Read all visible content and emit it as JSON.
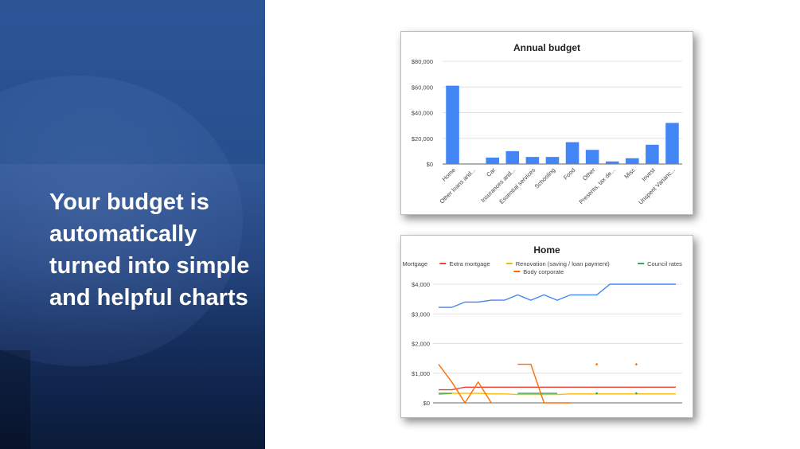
{
  "slide": {
    "tagline": "Your budget is automatically turned into simple and helpful charts"
  },
  "chart_data": [
    {
      "type": "bar",
      "title": "Annual budget",
      "categories": [
        "Home",
        "Other loans and...",
        "Car",
        "Insurances and...",
        "Essential services",
        "Schooling",
        "Food",
        "Other",
        "Presents, tax de...",
        "Misc",
        "Invest",
        "Unspent Varianc..."
      ],
      "values": [
        61000,
        0,
        5000,
        10000,
        5500,
        5500,
        17000,
        11000,
        2000,
        4500,
        15000,
        32000
      ],
      "ylim": [
        0,
        80000
      ],
      "yticks": [
        "$0",
        "$20,000",
        "$40,000",
        "$60,000",
        "$80,000"
      ],
      "grid": true,
      "color": "#4285f4"
    },
    {
      "type": "line",
      "title": "Home",
      "x": [
        1,
        2,
        3,
        4,
        5,
        6,
        7,
        8,
        9,
        10,
        11,
        12,
        13,
        14,
        15,
        16,
        17,
        18,
        19
      ],
      "ylim": [
        0,
        4000
      ],
      "yticks": [
        "$0",
        "$1,000",
        "$2,000",
        "$3,000",
        "$4,000"
      ],
      "grid": true,
      "legend_position": "top",
      "series": [
        {
          "name": "Mortgage",
          "color": "#4285f4",
          "values": [
            3220,
            3220,
            3400,
            3400,
            3460,
            3460,
            3640,
            3460,
            3640,
            3460,
            3640,
            3640,
            3640,
            4000,
            4000,
            4000,
            4000,
            4000,
            4000
          ]
        },
        {
          "name": "Extra mortgage",
          "color": "#ea4335",
          "values": [
            440,
            440,
            530,
            530,
            530,
            530,
            530,
            530,
            530,
            530,
            530,
            530,
            530,
            530,
            530,
            530,
            530,
            530,
            530
          ]
        },
        {
          "name": "Renovation (saving / loan payment)",
          "color": "#fbbc04",
          "values": [
            280,
            320,
            320,
            320,
            300,
            300,
            280,
            280,
            280,
            280,
            300,
            300,
            300,
            300,
            300,
            300,
            300,
            300,
            300
          ]
        },
        {
          "name": "Council rates",
          "color": "#34a853",
          "values": [
            320,
            320,
            null,
            null,
            null,
            null,
            320,
            320,
            320,
            320,
            null,
            null,
            320,
            null,
            null,
            320,
            null,
            null,
            null
          ]
        },
        {
          "name": "Body corporate",
          "color": "#ff6d01",
          "values": [
            1300,
            700,
            0,
            700,
            0,
            null,
            1300,
            1300,
            0,
            0,
            0,
            null,
            1300,
            null,
            null,
            1300,
            null,
            null,
            null
          ]
        }
      ]
    }
  ]
}
